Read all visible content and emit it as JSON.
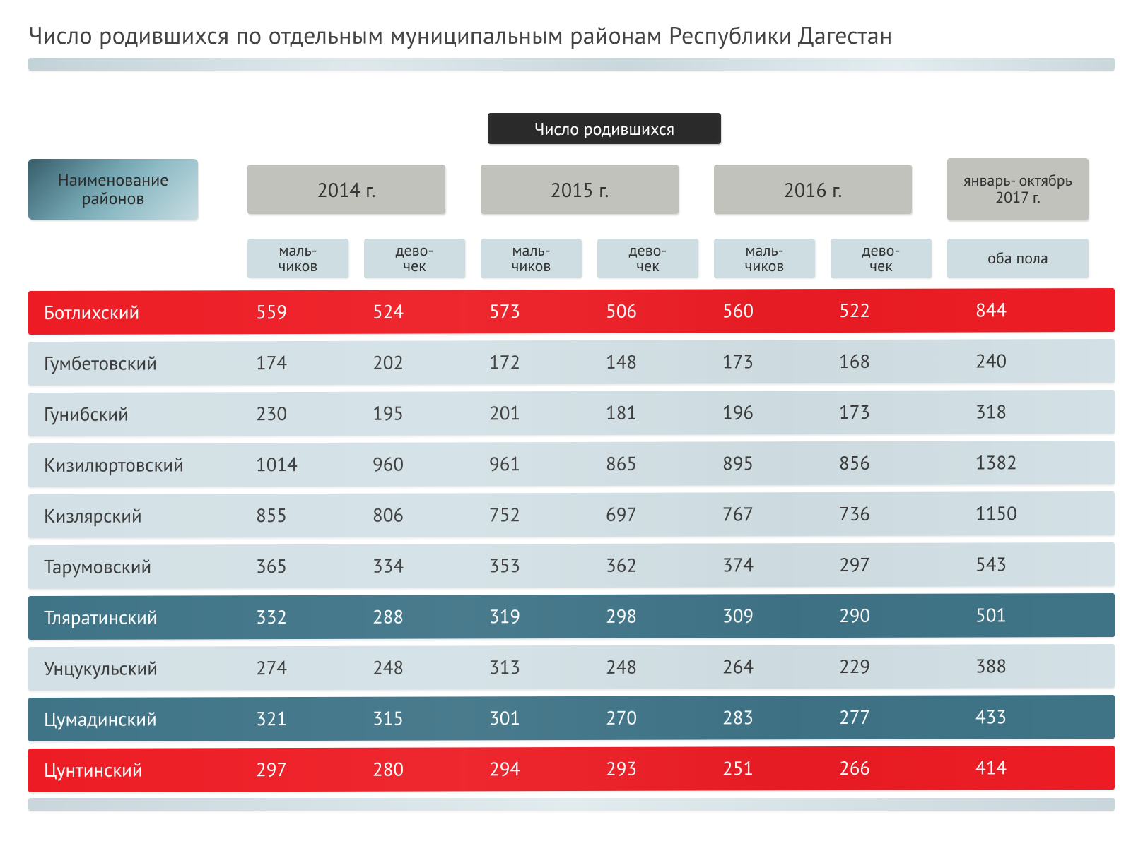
{
  "title": "Число родившихся по отдельным муниципальным районам Республики Дагестан",
  "super_header": "Число родившихся",
  "region_label_line1": "Наименование",
  "region_label_line2": "районов",
  "years": {
    "y2014": "2014 г.",
    "y2015": "2015 г.",
    "y2016": "2016 г.",
    "y2017": "январь-\nоктябрь\n2017 г."
  },
  "subheaders": {
    "boys": "маль-\nчиков",
    "girls": "дево-\nчек",
    "both": "оба пола"
  },
  "palette": {
    "title_underline_from": "#c2d3d8",
    "title_underline_to": "#e3edf0",
    "super_header_bg": "#2a2a2a",
    "region_badge_from": "#375d6a",
    "region_badge_to": "#c8dde2",
    "year_badge_bg": "#c2c2bc",
    "sub_badge_bg": "#cddde2",
    "row_light_bg": "#d3e1e6",
    "row_light_text": "#3a3a3a",
    "row_teal_bg": "#3f7487",
    "row_teal_text": "#ffffff",
    "row_red_bg": "#ed1c24",
    "row_red_text": "#ffffff"
  },
  "table": {
    "type": "table",
    "columns": [
      "region",
      "2014_boys",
      "2014_girls",
      "2015_boys",
      "2015_girls",
      "2016_boys",
      "2016_girls",
      "2017_both"
    ],
    "rows": [
      {
        "variant": "red",
        "region": "Ботлихский",
        "v": [
          "559",
          "524",
          "573",
          "506",
          "560",
          "522",
          "844"
        ]
      },
      {
        "variant": "light",
        "region": "Гумбетовский",
        "v": [
          "174",
          "202",
          "172",
          "148",
          "173",
          "168",
          "240"
        ]
      },
      {
        "variant": "light",
        "region": "Гунибский",
        "v": [
          "230",
          "195",
          "201",
          "181",
          "196",
          "173",
          "318"
        ]
      },
      {
        "variant": "light",
        "region": "Кизилюртовский",
        "v": [
          "1014",
          "960",
          "961",
          "865",
          "895",
          "856",
          "1382"
        ]
      },
      {
        "variant": "light",
        "region": "Кизлярский",
        "v": [
          "855",
          "806",
          "752",
          "697",
          "767",
          "736",
          "1150"
        ]
      },
      {
        "variant": "light",
        "region": "Тарумовский",
        "v": [
          "365",
          "334",
          "353",
          "362",
          "374",
          "297",
          "543"
        ]
      },
      {
        "variant": "teal",
        "region": "Тляратинский",
        "v": [
          "332",
          "288",
          "319",
          "298",
          "309",
          "290",
          "501"
        ]
      },
      {
        "variant": "light",
        "region": "Унцукульский",
        "v": [
          "274",
          "248",
          "313",
          "248",
          "264",
          "229",
          "388"
        ]
      },
      {
        "variant": "teal",
        "region": "Цумадинский",
        "v": [
          "321",
          "315",
          "301",
          "270",
          "283",
          "277",
          "433"
        ]
      },
      {
        "variant": "red",
        "region": "Цунтинский",
        "v": [
          "297",
          "280",
          "294",
          "293",
          "251",
          "266",
          "414"
        ]
      }
    ]
  }
}
